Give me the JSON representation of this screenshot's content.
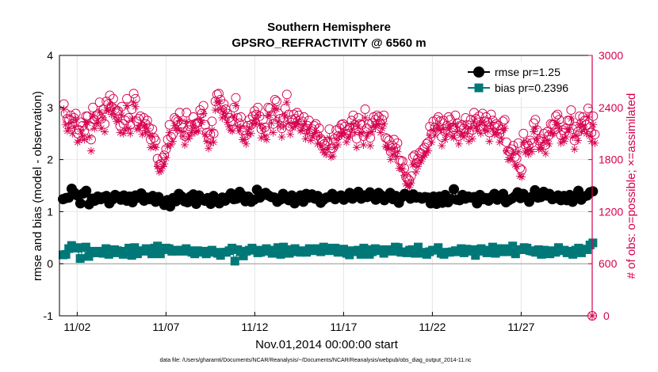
{
  "chart_data": {
    "type": "scatter",
    "title": "Southern Hemisphere",
    "subtitle": "GPSRO_REFRACTIVITY @ 6560 m",
    "xlabel": "Nov.01,2014 00:00:00 start",
    "ylabel": "rmse and bias (model - observation)",
    "ylabel_right": "# of obs: o=possible; ×=assimilated",
    "x_ticks": [
      "11/02",
      "11/07",
      "11/12",
      "11/17",
      "11/22",
      "11/27"
    ],
    "x_tick_days": [
      2,
      7,
      12,
      17,
      22,
      27
    ],
    "xlim_days": [
      1.0,
      31.0
    ],
    "ylim": [
      -1,
      4
    ],
    "y_ticks": [
      "-1",
      "0",
      "1",
      "2",
      "3",
      "4"
    ],
    "y_tick_values": [
      -1,
      0,
      1,
      2,
      3,
      4
    ],
    "y2lim": [
      0,
      3000
    ],
    "y2_ticks": [
      "0",
      "600",
      "1200",
      "1800",
      "2400",
      "3000"
    ],
    "y2_tick_values": [
      0,
      600,
      1200,
      1800,
      2400,
      3000
    ],
    "legend": [
      "rmse pr=1.25",
      "bias pr=0.2396"
    ],
    "legend_position": "top-right",
    "series": [
      {
        "name": "rmse",
        "marker": "circle",
        "color": "#000000",
        "values": [
          1.24,
          1.26,
          1.27,
          1.44,
          1.36,
          1.31,
          1.16,
          1.35,
          1.4,
          1.14,
          1.25,
          1.21,
          1.29,
          1.24,
          1.28,
          1.3,
          1.16,
          1.23,
          1.32,
          1.29,
          1.23,
          1.31,
          1.21,
          1.29,
          1.18,
          1.31,
          1.27,
          1.35,
          1.21,
          1.27,
          1.24,
          1.3,
          1.19,
          1.28,
          1.2,
          1.13,
          1.22,
          1.1,
          1.26,
          1.2,
          1.34,
          1.29,
          1.2,
          1.18,
          1.29,
          1.33,
          1.15,
          1.31,
          1.25,
          1.21,
          1.26,
          1.15,
          1.3,
          1.24,
          1.16,
          1.27,
          1.21,
          1.28,
          1.35,
          1.24,
          1.25,
          1.38,
          1.31,
          1.2,
          1.29,
          1.19,
          1.23,
          1.42,
          1.27,
          1.32,
          1.36,
          1.31,
          1.28,
          1.27,
          1.19,
          1.23,
          1.34,
          1.25,
          1.22,
          1.31,
          1.16,
          1.27,
          1.31,
          1.19,
          1.34,
          1.27,
          1.33,
          1.25,
          1.3,
          1.17,
          1.23,
          1.27,
          1.28,
          1.34,
          1.24,
          1.29,
          1.31,
          1.23,
          1.27,
          1.36,
          1.25,
          1.33,
          1.38,
          1.25,
          1.31,
          1.28,
          1.37,
          1.29,
          1.23,
          1.36,
          1.31,
          1.22,
          1.28,
          1.36,
          1.24,
          1.3,
          1.17,
          1.28,
          1.34,
          1.31,
          1.25,
          1.33,
          1.27,
          1.28,
          1.25,
          1.28,
          1.27,
          1.16,
          1.29,
          1.15,
          1.29,
          1.17,
          1.32,
          1.18,
          1.24,
          1.43,
          1.23,
          1.22,
          1.32,
          1.25,
          1.29,
          1.27,
          1.28,
          1.16,
          1.32,
          1.24,
          1.26,
          1.21,
          1.28,
          1.34,
          1.23,
          1.26,
          1.34,
          1.18,
          1.22,
          1.25,
          1.29,
          1.37,
          1.26,
          1.34,
          1.27,
          1.19,
          1.29,
          1.41,
          1.27,
          1.28,
          1.38,
          1.31,
          1.34,
          1.24,
          1.26,
          1.31,
          1.22,
          1.3,
          1.22,
          1.32,
          1.19,
          1.27,
          1.4,
          1.23,
          1.29,
          1.31,
          1.37,
          1.39
        ]
      },
      {
        "name": "bias",
        "marker": "square",
        "color": "#007878",
        "values": [
          0.17,
          0.18,
          0.29,
          0.35,
          0.31,
          0.3,
          0.1,
          0.31,
          0.32,
          0.14,
          0.24,
          0.21,
          0.21,
          0.24,
          0.2,
          0.29,
          0.18,
          0.21,
          0.27,
          0.25,
          0.21,
          0.18,
          0.24,
          0.3,
          0.16,
          0.31,
          0.19,
          0.25,
          0.24,
          0.29,
          0.25,
          0.19,
          0.3,
          0.34,
          0.19,
          0.27,
          0.3,
          0.29,
          0.24,
          0.24,
          0.26,
          0.26,
          0.24,
          0.29,
          0.25,
          0.22,
          0.19,
          0.25,
          0.22,
          0.24,
          0.19,
          0.22,
          0.26,
          0.22,
          0.2,
          0.16,
          0.22,
          0.22,
          0.25,
          0.3,
          0.05,
          0.27,
          0.23,
          0.15,
          0.24,
          0.26,
          0.3,
          0.26,
          0.21,
          0.22,
          0.26,
          0.29,
          0.24,
          0.2,
          0.26,
          0.31,
          0.18,
          0.32,
          0.27,
          0.2,
          0.23,
          0.29,
          0.24,
          0.22,
          0.25,
          0.22,
          0.29,
          0.28,
          0.25,
          0.29,
          0.23,
          0.32,
          0.26,
          0.25,
          0.3,
          0.3,
          0.22,
          0.24,
          0.28,
          0.2,
          0.17,
          0.25,
          0.23,
          0.26,
          0.18,
          0.3,
          0.27,
          0.18,
          0.23,
          0.29,
          0.25,
          0.27,
          0.2,
          0.26,
          0.27,
          0.24,
          0.32,
          0.31,
          0.22,
          0.23,
          0.21,
          0.26,
          0.27,
          0.2,
          0.32,
          0.22,
          0.2,
          0.18,
          0.23,
          0.26,
          0.26,
          0.31,
          0.2,
          0.18,
          0.22,
          0.22,
          0.23,
          0.25,
          0.23,
          0.29,
          0.21,
          0.28,
          0.24,
          0.27,
          0.16,
          0.24,
          0.29,
          0.25,
          0.21,
          0.26,
          0.32,
          0.2,
          0.29,
          0.23,
          0.29,
          0.23,
          0.26,
          0.34,
          0.19,
          0.27,
          0.27,
          0.31,
          0.3,
          0.25,
          0.24,
          0.22,
          0.27,
          0.18,
          0.26,
          0.2,
          0.19,
          0.25,
          0.22,
          0.31,
          0.25,
          0.26,
          0.21,
          0.24,
          0.18,
          0.26,
          0.3,
          0.21,
          0.28,
          0.27,
          0.36,
          0.4
        ]
      },
      {
        "name": "obs possible",
        "marker": "open-circle",
        "color": "#d6004e",
        "axis": "right",
        "values": [
          2440,
          2330,
          2270,
          2260,
          2310,
          2210,
          2280,
          2330,
          2100,
          2140,
          2230,
          2190,
          2130,
          2300,
          2300,
          2190,
          2030,
          2400,
          2260,
          2300,
          2320,
          2460,
          2270,
          2380,
          2210,
          2470,
          2440,
          2540,
          2410,
          2500,
          2380,
          2360,
          2360,
          2190,
          2410,
          2210,
          2250,
          2500,
          2280,
          2200,
          2380,
          2560,
          2500,
          2240,
          2270,
          2300,
          2180,
          2280,
          2210,
          2250,
          2170,
          2030,
          2150,
          2050,
          2020,
          1810,
          1740,
          1750,
          1820,
          1850,
          1920,
          2030,
          2200,
          2060,
          2090,
          2280,
          2260,
          2240,
          2340,
          2210,
          2170,
          2070,
          2340,
          2140,
          2180,
          2200,
          2290,
          2210,
          2220,
          2230,
          2370,
          2330,
          2420,
          2200,
          2110,
          2040,
          2090,
          2240,
          2100,
          2470,
          2550,
          2560,
          2490,
          2370,
          2440,
          2380,
          2330,
          2280,
          2240,
          2240,
          2400,
          2510,
          2280,
          2220,
          2290,
          2130,
          2140,
          2080,
          2190,
          2260,
          2200,
          2300,
          2360,
          2320,
          2400,
          2300,
          2150,
          2260,
          2170,
          2130,
          2400,
          2390,
          2310,
          2210,
          2490,
          2470,
          2330,
          2270,
          2160,
          2280,
          2390,
          2550,
          2320,
          2180,
          2260,
          2320,
          2270,
          2340,
          2310,
          2220,
          2240,
          2290,
          2140,
          2190,
          2250,
          2130,
          2150,
          2190,
          2210,
          2080,
          2160,
          2040,
          2010,
          1980,
          1960,
          2010,
          2150,
          1930,
          1930,
          2040,
          2140,
          2070,
          2160,
          2200,
          2210,
          2180,
          2100,
          2140,
          2170,
          2250,
          2310,
          2200,
          2040,
          2280,
          2210,
          2200,
          2070,
          2380,
          2160,
          2210,
          2050,
          2220,
          2290,
          2260,
          2310,
          2290,
          2210,
          2260,
          2310,
          2050,
          2040,
          2020,
          1890,
          1960,
          2030,
          1930,
          1990,
          1790,
          1790,
          1780,
          1700,
          1600,
          1580,
          1560,
          1610,
          1830,
          1850,
          1760,
          1810,
          1880,
          1870,
          1920,
          1940,
          1980,
          2000,
          2180,
          2100,
          2240,
          2170,
          2260,
          2290,
          2240,
          2060,
          2250,
          2120,
          2190,
          2290,
          2260,
          2170,
          2150,
          2310,
          2220,
          2070,
          2180,
          2200,
          2160,
          2280,
          2200,
          2110,
          2260,
          2140,
          2340,
          2270,
          2230,
          2300,
          2190,
          2330,
          2240,
          2290,
          2230,
          2110,
          2320,
          2250,
          2180,
          2210,
          2190,
          2100,
          2150,
          2240,
          2260,
          2000,
          1900,
          1890,
          1920,
          1960,
          1830,
          1810,
          1990,
          1700,
          1680,
          2100,
          1970,
          1990,
          1960,
          2020,
          1990,
          2220,
          2260,
          2140,
          2020,
          2040,
          2010,
          2100,
          1970,
          2120,
          2080,
          2210,
          2200,
          2200,
          2300,
          2320,
          2260,
          2080,
          2140,
          2110,
          2160,
          2250,
          2250,
          2370,
          2150,
          2020,
          2180,
          2120,
          2300,
          2220,
          2290,
          2250,
          2200,
          2390,
          2170,
          2110,
          2300,
          2090
        ]
      },
      {
        "name": "obs assimilated",
        "marker": "asterisk",
        "color": "#d6004e",
        "axis": "right",
        "values": [
          2380,
          2200,
          2130,
          2160,
          2220,
          2100,
          2180,
          2260,
          2000,
          2020,
          2130,
          2070,
          2030,
          2230,
          2220,
          2060,
          1900,
          2300,
          2160,
          2220,
          2220,
          2350,
          2160,
          2280,
          2120,
          2370,
          2360,
          2440,
          2320,
          2380,
          2290,
          2240,
          2260,
          2110,
          2310,
          2100,
          2140,
          2420,
          2160,
          2100,
          2270,
          2460,
          2410,
          2150,
          2160,
          2200,
          2090,
          2190,
          2110,
          2160,
          2080,
          1940,
          2070,
          1950,
          1940,
          1720,
          1660,
          1670,
          1720,
          1750,
          1820,
          1950,
          2110,
          1970,
          2010,
          2190,
          2160,
          2140,
          2250,
          2130,
          2070,
          1970,
          2240,
          2040,
          2070,
          2110,
          2190,
          2110,
          2130,
          2130,
          2260,
          2230,
          2330,
          2090,
          2010,
          1930,
          1990,
          2140,
          2000,
          2370,
          2460,
          2470,
          2380,
          2280,
          2350,
          2300,
          2230,
          2180,
          2140,
          2130,
          2300,
          2420,
          2180,
          2130,
          2180,
          2030,
          2030,
          1980,
          2090,
          2170,
          2100,
          2210,
          2260,
          2220,
          2310,
          2200,
          2050,
          2160,
          2070,
          2030,
          2310,
          2310,
          2220,
          2110,
          2390,
          2380,
          2240,
          2180,
          2060,
          2180,
          2300,
          2460,
          2220,
          2090,
          2170,
          2220,
          2180,
          2240,
          2210,
          2130,
          2140,
          2200,
          2040,
          2100,
          2150,
          2020,
          2060,
          2100,
          2110,
          1980,
          2070,
          1950,
          1910,
          1880,
          1860,
          1920,
          2050,
          1830,
          1840,
          1940,
          2040,
          1970,
          2070,
          2100,
          2110,
          2090,
          2000,
          2050,
          2070,
          2150,
          2210,
          2110,
          1940,
          2180,
          2110,
          2100,
          1970,
          2280,
          2070,
          2110,
          1960,
          2120,
          2190,
          2170,
          2210,
          2200,
          2110,
          2160,
          2210,
          1950,
          1940,
          1920,
          1800,
          1860,
          1930,
          1840,
          1890,
          1700,
          1700,
          1690,
          1620,
          1520,
          1500,
          1480,
          1530,
          1740,
          1750,
          1660,
          1720,
          1790,
          1780,
          1830,
          1850,
          1880,
          1900,
          2080,
          2000,
          2140,
          2080,
          2160,
          2190,
          2140,
          1960,
          2150,
          2030,
          2090,
          2190,
          2160,
          2070,
          2050,
          2210,
          2120,
          1980,
          2080,
          2100,
          2060,
          2180,
          2100,
          2010,
          2160,
          2040,
          2240,
          2170,
          2130,
          2200,
          2100,
          2230,
          2140,
          2190,
          2130,
          2010,
          2220,
          2150,
          2090,
          2110,
          2090,
          2000,
          2050,
          2140,
          2160,
          1900,
          1800,
          1800,
          1820,
          1870,
          1740,
          1720,
          1890,
          1610,
          1600,
          2000,
          1880,
          1900,
          1860,
          1920,
          1890,
          2120,
          2160,
          2040,
          1920,
          1940,
          1920,
          2000,
          1870,
          2020,
          1980,
          2110,
          2100,
          2100,
          2200,
          2220,
          2160,
          1990,
          2040,
          2010,
          2060,
          2150,
          2150,
          2270,
          2060,
          1920,
          2080,
          2020,
          2200,
          2120,
          2190,
          2150,
          2100,
          2290,
          2070,
          2010,
          2200,
          1990
        ]
      }
    ]
  },
  "footer": "data file: /Users/gharamti/Documents/NCAR/Reanalysis/~/Documents/NCAR/Reanalysis/webpub/obs_diag_output_2014-11.nc",
  "colors": {
    "right_axis": "#d6004e",
    "bias": "#007878",
    "rmse": "#000000"
  }
}
